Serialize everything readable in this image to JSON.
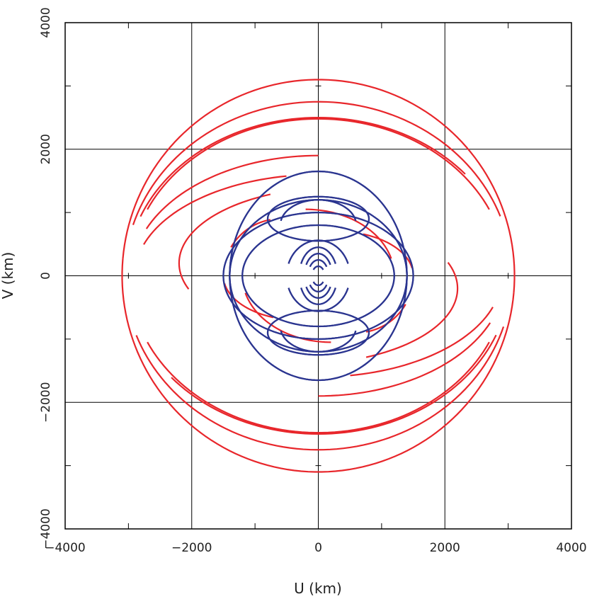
{
  "chart_data": {
    "type": "scatter",
    "title": "",
    "xlabel": "U (km)",
    "ylabel": "V (km)",
    "xlim": [
      -4000,
      4000
    ],
    "ylim": [
      -4000,
      4000
    ],
    "grid": true,
    "x_ticks": [
      -4000,
      -2000,
      0,
      2000,
      4000
    ],
    "y_ticks": [
      -4000,
      -2000,
      0,
      2000,
      4000
    ],
    "x_tick_labels": [
      "−4000",
      "−2000",
      "0",
      "2000",
      "4000"
    ],
    "y_tick_labels": [
      "−4000",
      "−2000",
      "0",
      "2000",
      "4000"
    ],
    "colors": {
      "red": "#e8262b",
      "blue": "#2b3590",
      "grid": "#000000"
    },
    "series": [
      {
        "color": "red",
        "tracks": [
          {
            "u": 0,
            "v": 0,
            "a": 3100,
            "b": 3100,
            "t0": -5,
            "t1": 175
          },
          {
            "u": 0,
            "v": 0,
            "a": 3060,
            "b": 2750,
            "t0": 20,
            "t1": 163
          },
          {
            "u": 0,
            "v": 0,
            "a": 3030,
            "b": 2500,
            "t0": 40,
            "t1": 158
          },
          {
            "u": 0,
            "v": 0,
            "a": 2980,
            "b": 2480,
            "t0": 25,
            "t1": 155
          },
          {
            "u": 0,
            "v": 0,
            "a": 2950,
            "b": 1900,
            "t0": 90,
            "t1": 157
          },
          {
            "u": 0,
            "v": 0,
            "a": 2900,
            "b": 1600,
            "t0": 100,
            "t1": 162
          },
          {
            "u": 300,
            "v": 200,
            "a": 2500,
            "b": 1200,
            "t0": 115,
            "t1": 200
          },
          {
            "u": 200,
            "v": 0,
            "a": 1400,
            "b": 1050,
            "t0": 195,
            "t1": 270
          },
          {
            "u": 300,
            "v": 0,
            "a": 1200,
            "b": 700,
            "t0": 10,
            "t1": 70
          },
          {
            "u": 600,
            "v": 0,
            "a": 900,
            "b": 900,
            "t0": -80,
            "t1": -30
          }
        ]
      },
      {
        "color": "blue",
        "tracks": [
          {
            "u": 0,
            "v": 0,
            "a": 1400,
            "b": 1650,
            "t0": 0,
            "t1": 360
          },
          {
            "u": 0,
            "v": 0,
            "a": 1500,
            "b": 1000,
            "t0": 0,
            "t1": 360
          },
          {
            "u": 0,
            "v": 0,
            "a": 1200,
            "b": 800,
            "t0": 0,
            "t1": 360
          },
          {
            "u": 0,
            "v": 0,
            "a": 1400,
            "b": 1200,
            "t0": 0,
            "t1": 360
          },
          {
            "u": 0,
            "v": 900,
            "a": 800,
            "b": 350,
            "t0": 0,
            "t1": 360
          },
          {
            "u": 0,
            "v": -900,
            "a": 800,
            "b": 350,
            "t0": 0,
            "t1": 360
          },
          {
            "u": 0,
            "v": 800,
            "a": 600,
            "b": 400,
            "t0": 10,
            "t1": 170
          },
          {
            "u": 0,
            "v": -800,
            "a": 600,
            "b": 400,
            "t0": 190,
            "t1": 350
          },
          {
            "u": 0,
            "v": 0,
            "a": 500,
            "b": 560,
            "t0": 20,
            "t1": 160
          },
          {
            "u": 0,
            "v": 0,
            "a": 500,
            "b": 560,
            "t0": 200,
            "t1": 340
          },
          {
            "u": 0,
            "v": 0,
            "a": 300,
            "b": 450,
            "t0": 25,
            "t1": 155
          },
          {
            "u": 0,
            "v": 0,
            "a": 300,
            "b": 450,
            "t0": 205,
            "t1": 335
          },
          {
            "u": 0,
            "v": 0,
            "a": 220,
            "b": 350,
            "t0": 30,
            "t1": 150
          },
          {
            "u": 0,
            "v": 0,
            "a": 220,
            "b": 350,
            "t0": 210,
            "t1": 330
          },
          {
            "u": 0,
            "v": 0,
            "a": 160,
            "b": 250,
            "t0": 35,
            "t1": 145
          },
          {
            "u": 0,
            "v": 0,
            "a": 160,
            "b": 250,
            "t0": 215,
            "t1": 325
          },
          {
            "u": 0,
            "v": 0,
            "a": 100,
            "b": 150,
            "t0": 40,
            "t1": 140
          },
          {
            "u": 0,
            "v": 0,
            "a": 100,
            "b": 150,
            "t0": 220,
            "t1": 320
          }
        ]
      }
    ]
  }
}
